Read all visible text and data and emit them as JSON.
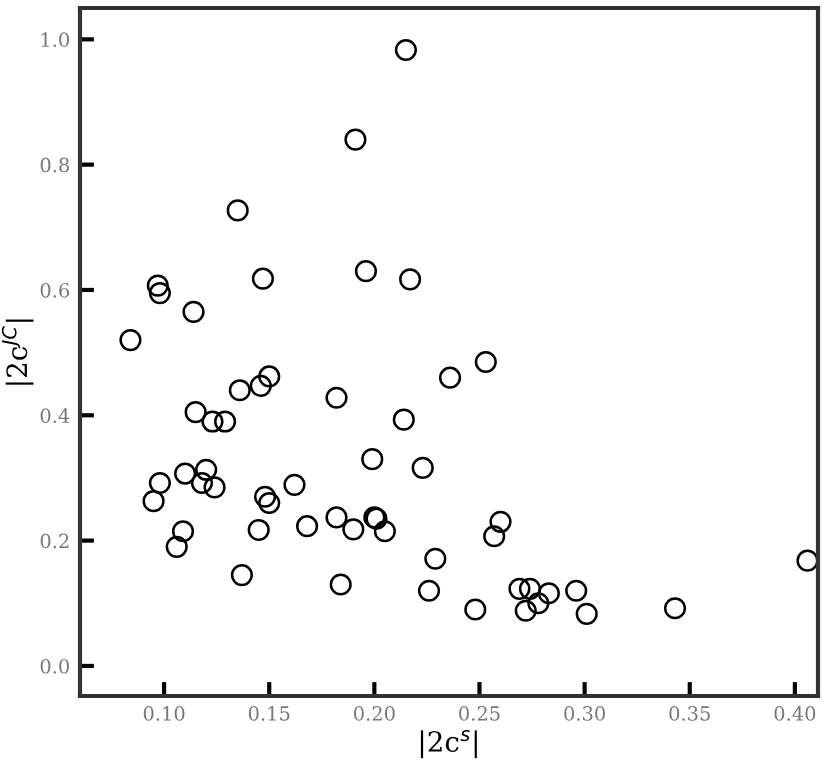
{
  "chart_data": {
    "type": "scatter",
    "xlabel": "|2c$^{s}$|",
    "ylabel": "|2c$^{JC}$|",
    "marker": "circle",
    "grid": false,
    "legend": false,
    "xlim": [
      0.06,
      0.411
    ],
    "ylim": [
      -0.048,
      1.05
    ],
    "xticks": [
      {
        "value": 0.1,
        "label": "0.10"
      },
      {
        "value": 0.15,
        "label": "0.15"
      },
      {
        "value": 0.2,
        "label": "0.20"
      },
      {
        "value": 0.25,
        "label": "0.25"
      },
      {
        "value": 0.3,
        "label": "0.30"
      },
      {
        "value": 0.35,
        "label": "0.35"
      },
      {
        "value": 0.4,
        "label": "0.40"
      }
    ],
    "yticks": [
      {
        "value": 0,
        "label": "0.0"
      },
      {
        "value": 0.2,
        "label": "0.2"
      },
      {
        "value": 0.4,
        "label": "0.4"
      },
      {
        "value": 0.6,
        "label": "0.6"
      },
      {
        "value": 0.8,
        "label": "0.8"
      },
      {
        "value": 1.0,
        "label": "1.0"
      }
    ],
    "series": [
      {
        "color": "#000000",
        "x": [
          0.084,
          0.097,
          0.098,
          0.114,
          0.135,
          0.147,
          0.191,
          0.215,
          0.196,
          0.217,
          0.253,
          0.236,
          0.15,
          0.146,
          0.136,
          0.182,
          0.115,
          0.123,
          0.129,
          0.214,
          0.199,
          0.223,
          0.098,
          0.095,
          0.11,
          0.12,
          0.118,
          0.124,
          0.162,
          0.148,
          0.15,
          0.109,
          0.106,
          0.145,
          0.137,
          0.168,
          0.182,
          0.2,
          0.201,
          0.19,
          0.205,
          0.184,
          0.229,
          0.226,
          0.257,
          0.26,
          0.248,
          0.269,
          0.274,
          0.272,
          0.278,
          0.283,
          0.296,
          0.301,
          0.343,
          0.406
        ],
        "values": [
          0.52,
          0.607,
          0.595,
          0.565,
          0.727,
          0.618,
          0.84,
          0.983,
          0.63,
          0.617,
          0.485,
          0.46,
          0.462,
          0.447,
          0.44,
          0.428,
          0.405,
          0.39,
          0.39,
          0.393,
          0.33,
          0.316,
          0.292,
          0.263,
          0.307,
          0.313,
          0.292,
          0.285,
          0.289,
          0.27,
          0.26,
          0.215,
          0.19,
          0.217,
          0.145,
          0.223,
          0.237,
          0.237,
          0.235,
          0.218,
          0.215,
          0.13,
          0.171,
          0.12,
          0.207,
          0.23,
          0.09,
          0.123,
          0.123,
          0.088,
          0.1,
          0.116,
          0.12,
          0.083,
          0.092,
          0.168
        ]
      }
    ]
  }
}
